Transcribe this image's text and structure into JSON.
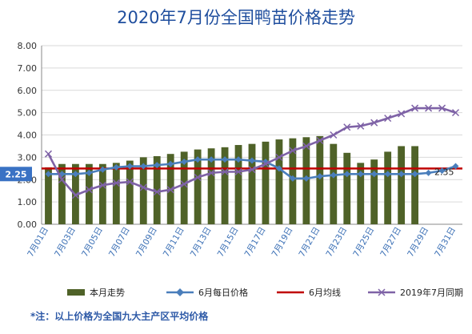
{
  "chart_data": {
    "type": "bar",
    "title": "2020年7月份全国鸭苗价格走势",
    "ylim": [
      0,
      8
    ],
    "yticks": [
      "0.00",
      "1.00",
      "2.00",
      "3.00",
      "4.00",
      "5.00",
      "6.00",
      "7.00",
      "8.00"
    ],
    "grid": true,
    "categories": [
      "7月01日",
      "7月02日",
      "7月03日",
      "7月04日",
      "7月05日",
      "7月06日",
      "7月07日",
      "7月08日",
      "7月09日",
      "7月10日",
      "7月11日",
      "7月12日",
      "7月13日",
      "7月14日",
      "7月15日",
      "7月16日",
      "7月17日",
      "7月18日",
      "7月19日",
      "7月20日",
      "7月21日",
      "7月22日",
      "7月23日",
      "7月24日",
      "7月25日",
      "7月26日",
      "7月27日",
      "7月28日",
      "7月29日",
      "7月30日",
      "7月31日"
    ],
    "x_labels": [
      "7月01日",
      "7月03日",
      "7月05日",
      "7月07日",
      "7月09日",
      "7月11日",
      "7月13日",
      "7月15日",
      "7月17日",
      "7月19日",
      "7月21日",
      "7月23日",
      "7月25日",
      "7月27日",
      "7月29日",
      "7月31日"
    ],
    "series": [
      {
        "name": "本月走势",
        "kind": "bar",
        "color": "#4f6228",
        "values": [
          2.55,
          2.7,
          2.7,
          2.7,
          2.7,
          2.75,
          2.85,
          3.0,
          3.05,
          3.15,
          3.25,
          3.35,
          3.4,
          3.45,
          3.55,
          3.6,
          3.7,
          3.8,
          3.85,
          3.9,
          3.95,
          3.6,
          3.2,
          2.75,
          2.9,
          3.25,
          3.5,
          3.5,
          null,
          null,
          null
        ]
      },
      {
        "name": "6月每日价格",
        "kind": "line",
        "color": "#4a7ebb",
        "marker": "diamond",
        "values": [
          2.25,
          2.25,
          2.25,
          2.3,
          2.45,
          2.55,
          2.6,
          2.6,
          2.65,
          2.7,
          2.8,
          2.9,
          2.9,
          2.9,
          2.9,
          2.85,
          2.8,
          2.5,
          2.05,
          2.05,
          2.15,
          2.2,
          2.25,
          2.25,
          2.25,
          2.25,
          2.25,
          2.25,
          2.3,
          2.4,
          2.6
        ]
      },
      {
        "name": "6月均线",
        "kind": "hline",
        "color": "#c00000",
        "value": 2.5
      },
      {
        "name": "2019年7月同期",
        "kind": "line",
        "color": "#7e62a6",
        "marker": "x",
        "values": [
          3.15,
          2.0,
          1.3,
          1.55,
          1.75,
          1.85,
          1.9,
          1.65,
          1.45,
          1.55,
          1.8,
          2.1,
          2.3,
          2.35,
          2.35,
          2.45,
          2.7,
          3.0,
          3.3,
          3.5,
          3.75,
          4.0,
          4.35,
          4.4,
          4.55,
          4.75,
          4.95,
          5.2,
          5.2,
          5.2,
          5.0
        ]
      }
    ],
    "annotations": [
      {
        "text": "2.25",
        "value": 2.25,
        "position": "left-axis-box"
      },
      {
        "text": "2.35",
        "value": 2.35,
        "position": "right-end"
      }
    ]
  },
  "legend": {
    "bar_label": "本月走势",
    "june_daily_label": "6月每日价格",
    "june_avg_label": "6月均线",
    "last_year_label": "2019年7月同期"
  },
  "footnote": "*注：以上价格为全国九大主产区平均价格"
}
